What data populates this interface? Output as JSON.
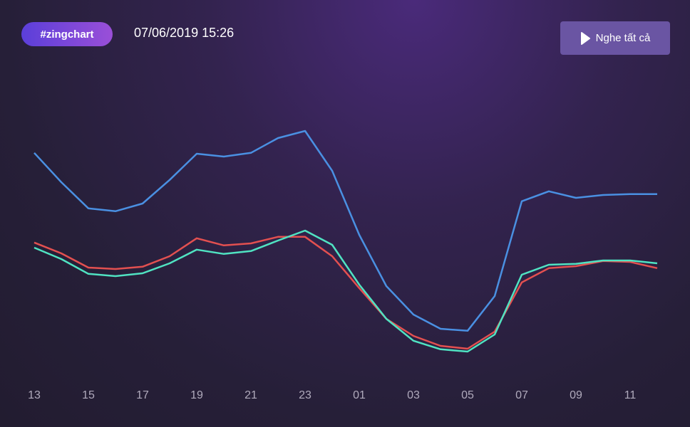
{
  "badge": "#zingchart",
  "timestamp": "07/06/2019 15:26",
  "button": "Nghe tất cả",
  "chart_data": {
    "type": "line",
    "categories": [
      "13",
      null,
      "15",
      null,
      "17",
      null,
      "19",
      null,
      "21",
      null,
      "23",
      null,
      "01",
      null,
      "03",
      null,
      "05",
      null,
      "07",
      null,
      "09",
      null,
      "11",
      null
    ],
    "ylim": [
      0,
      100
    ],
    "series": [
      {
        "color": "#4a90e2",
        "values": [
          76.3,
          66,
          56.8,
          55.8,
          58.5,
          66.8,
          76,
          75,
          76.3,
          81.5,
          84,
          70,
          47.5,
          29.5,
          19.5,
          14.5,
          13.8,
          26,
          59.3,
          62.8,
          60.5,
          61.5,
          61.8,
          61.8
        ]
      },
      {
        "color": "#e35050",
        "values": [
          44.8,
          41,
          36,
          35.5,
          36.3,
          40,
          46.3,
          43.8,
          44.5,
          46.8,
          46.8,
          40,
          28.8,
          18,
          12,
          8.5,
          7.5,
          13.5,
          30.8,
          35.8,
          36.5,
          38.3,
          38,
          35.8
        ]
      },
      {
        "color": "#50e3c2",
        "values": [
          43,
          39,
          33.8,
          33,
          34,
          37.5,
          42.3,
          40.8,
          41.8,
          45.5,
          49,
          44,
          30,
          18,
          10.3,
          7.3,
          6.5,
          12.5,
          33.5,
          37,
          37.3,
          38.5,
          38.5,
          37.5
        ]
      }
    ]
  }
}
